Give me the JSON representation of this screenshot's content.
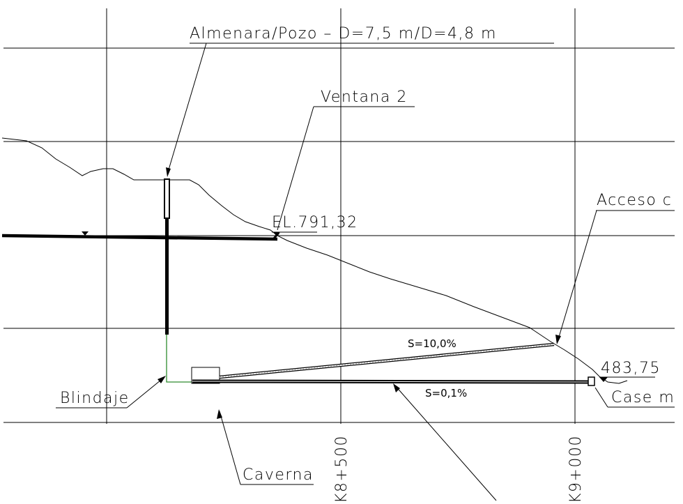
{
  "labels": {
    "almenara": "Almenara/Pozo  –  D=7,5 m/D=4,8 m",
    "ventana": "Ventana 2",
    "elevation_1": "EL.791,32",
    "acceso": "Acceso c",
    "elevation_2": "483,75",
    "blindaje": "Blindaje",
    "caverna": "Caverna",
    "casa": "Case m",
    "slope_acceso": "S=10,0%",
    "slope_tunel": "S=0,1%"
  },
  "stations": {
    "st_8500": "K8+500",
    "st_9000": "K9+000"
  },
  "colors": {
    "line": "#000000",
    "blindaje": "#2e8b2e",
    "background": "#ffffff"
  }
}
